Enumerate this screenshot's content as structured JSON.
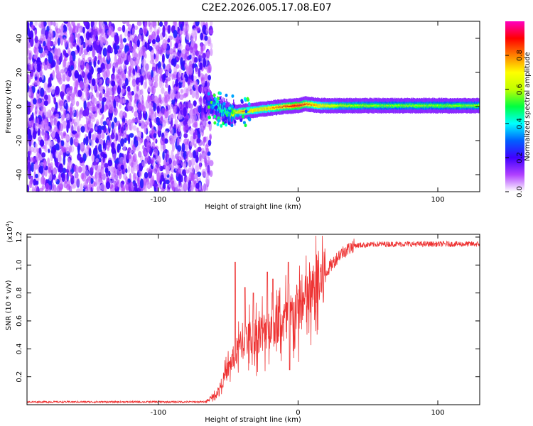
{
  "title": "C2E2.2026.005.17.08.E07",
  "chart_data": [
    {
      "type": "heatmap",
      "title": "C2E2.2026.005.17.08.E07",
      "xlabel": "Height of straight line (km)",
      "ylabel": "Frequency (Hz)",
      "xlim": [
        -194,
        130
      ],
      "ylim": [
        -50,
        50
      ],
      "xticks": [
        -100,
        0,
        100
      ],
      "yticks": [
        -40,
        -20,
        0,
        20,
        40
      ],
      "colorbar": {
        "label": "Normalized spectral amplitude",
        "range": [
          0,
          1
        ],
        "ticks": [
          0.0,
          0.2,
          0.4,
          0.6,
          0.8
        ],
        "colors": [
          "#ffffff",
          "#b040ff",
          "#4000ff",
          "#0060ff",
          "#00ffff",
          "#00ff40",
          "#c0ff00",
          "#ffff00",
          "#ff8000",
          "#ff0000",
          "#ff00c0"
        ]
      },
      "noise_region": {
        "x_range": [
          -194,
          -66
        ],
        "freq_range": [
          -50,
          50
        ],
        "amplitude": [
          0.05,
          0.25
        ]
      },
      "signal_track": [
        {
          "x": -66,
          "freq": 3,
          "amp": 0.25
        },
        {
          "x": -58,
          "freq": -1,
          "amp": 0.5
        },
        {
          "x": -50,
          "freq": -4,
          "amp": 0.55
        },
        {
          "x": -40,
          "freq": -3,
          "amp": 0.85
        },
        {
          "x": -30,
          "freq": -2,
          "amp": 0.75
        },
        {
          "x": -20,
          "freq": -1,
          "amp": 0.8
        },
        {
          "x": -10,
          "freq": 0,
          "amp": 0.9
        },
        {
          "x": 0,
          "freq": 0.5,
          "amp": 0.95
        },
        {
          "x": 5,
          "freq": 1.5,
          "amp": 0.9
        },
        {
          "x": 15,
          "freq": 0.5,
          "amp": 0.75
        },
        {
          "x": 30,
          "freq": 0.5,
          "amp": 0.65
        },
        {
          "x": 60,
          "freq": 0.5,
          "amp": 0.6
        },
        {
          "x": 100,
          "freq": 0.5,
          "amp": 0.6
        },
        {
          "x": 130,
          "freq": 0.5,
          "amp": 0.6
        }
      ]
    },
    {
      "type": "line",
      "xlabel": "Height of straight line (km)",
      "ylabel": "SNR (10 * v/v)",
      "multiplier": "(x10",
      "multiplier_exp": "4",
      "multiplier_close": ")",
      "xlim": [
        -194,
        130
      ],
      "ylim": [
        0,
        1.22
      ],
      "xticks": [
        -100,
        0,
        100
      ],
      "yticks": [
        0.2,
        0.4,
        0.6,
        0.8,
        1.0,
        1.2
      ],
      "color": "#ee3333",
      "series_envelope": [
        {
          "x": -194,
          "y": 0.02
        },
        {
          "x": -66,
          "y": 0.02
        },
        {
          "x": -58,
          "y": 0.08
        },
        {
          "x": -48,
          "y": 0.3
        },
        {
          "x": -40,
          "y": 0.45
        },
        {
          "x": -30,
          "y": 0.5
        },
        {
          "x": -20,
          "y": 0.55
        },
        {
          "x": -10,
          "y": 0.6
        },
        {
          "x": 0,
          "y": 0.68
        },
        {
          "x": 10,
          "y": 0.78
        },
        {
          "x": 20,
          "y": 0.95
        },
        {
          "x": 30,
          "y": 1.08
        },
        {
          "x": 40,
          "y": 1.14
        },
        {
          "x": 60,
          "y": 1.15
        },
        {
          "x": 100,
          "y": 1.15
        },
        {
          "x": 130,
          "y": 1.15
        }
      ],
      "spikes": [
        {
          "x": -45,
          "y": 1.02
        },
        {
          "x": -38,
          "y": 0.84
        },
        {
          "x": -32,
          "y": 0.8
        },
        {
          "x": -22,
          "y": 0.95
        },
        {
          "x": -18,
          "y": 0.9
        },
        {
          "x": -7,
          "y": 1.02
        },
        {
          "x": -6,
          "y": 0.25
        }
      ]
    }
  ]
}
